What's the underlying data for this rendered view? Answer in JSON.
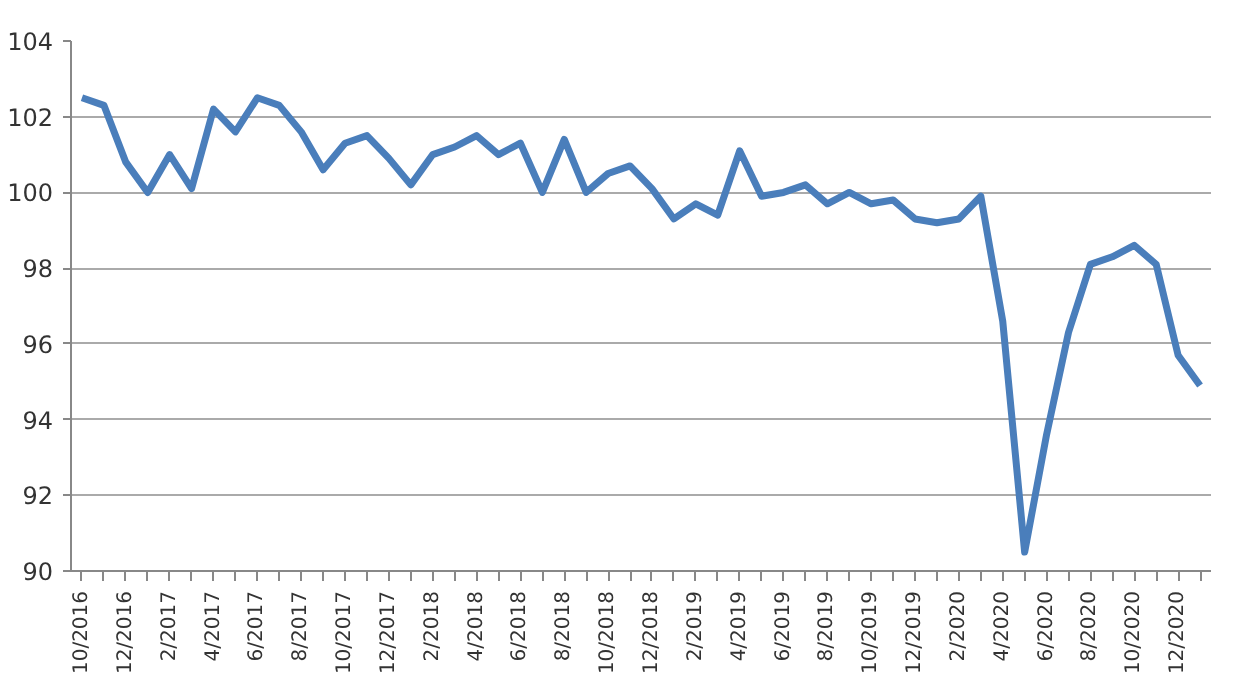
{
  "chart_data": {
    "type": "line",
    "categories": [
      "10/2016",
      null,
      "12/2016",
      null,
      "2/2017",
      null,
      "4/2017",
      null,
      "6/2017",
      null,
      "8/2017",
      null,
      "10/2017",
      null,
      "12/2017",
      null,
      "2/2018",
      null,
      "4/2018",
      null,
      "6/2018",
      null,
      "8/2018",
      null,
      "10/2018",
      null,
      "12/2018",
      null,
      "2/2019",
      null,
      "4/2019",
      null,
      "6/2019",
      null,
      "8/2019",
      null,
      "10/2019",
      null,
      "12/2019",
      null,
      "2/2020",
      null,
      "4/2020",
      null,
      "6/2020",
      null,
      "8/2020",
      null,
      "10/2020",
      null,
      "12/2020",
      null
    ],
    "series": [
      {
        "color": "#4a7ebb",
        "values": [
          102.5,
          102.3,
          100.8,
          100.0,
          101.0,
          100.1,
          102.2,
          101.6,
          102.5,
          102.3,
          101.6,
          100.6,
          101.3,
          101.5,
          100.9,
          100.2,
          101.0,
          101.2,
          101.5,
          101.0,
          101.3,
          100.0,
          101.4,
          100.0,
          100.5,
          100.7,
          100.1,
          99.3,
          99.7,
          99.4,
          101.1,
          99.9,
          100.0,
          100.2,
          99.7,
          100.0,
          99.7,
          99.8,
          99.3,
          99.2,
          99.3,
          99.9,
          96.6,
          90.5,
          93.6,
          96.3,
          98.1,
          98.3,
          98.6,
          98.1,
          95.7,
          94.9
        ]
      }
    ],
    "ylim": [
      90,
      104
    ],
    "yticks": [
      90,
      92,
      94,
      96,
      98,
      100,
      102,
      104
    ],
    "grid": "y",
    "marker": "none",
    "line_style": "solid"
  }
}
